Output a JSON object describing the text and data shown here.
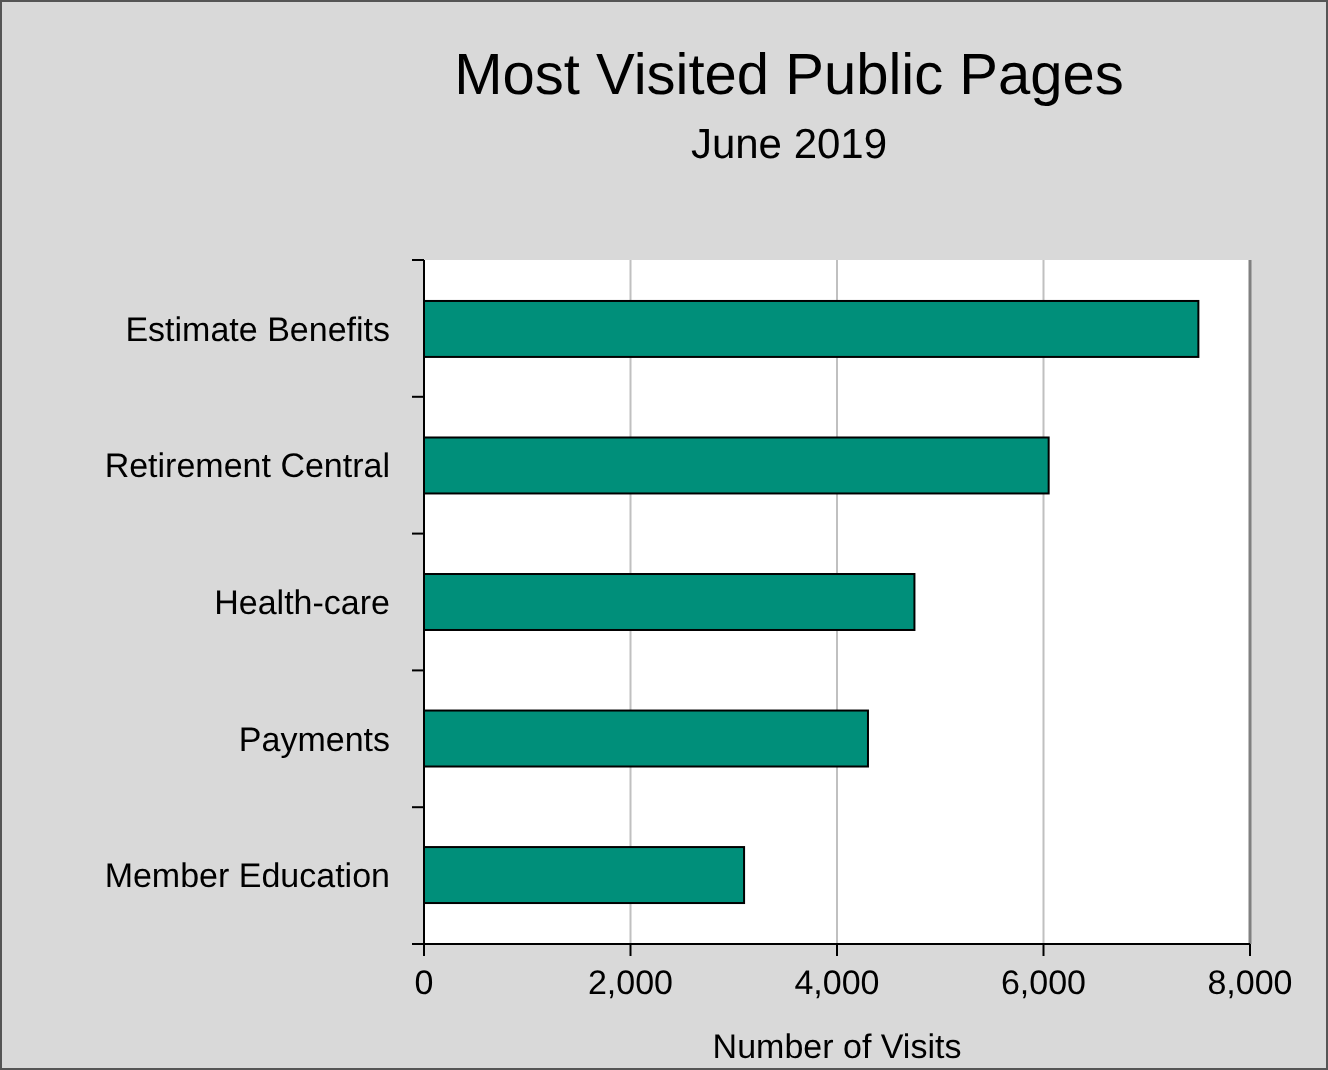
{
  "chart_data": {
    "type": "bar",
    "orientation": "horizontal",
    "title": "Most Visited Public Pages",
    "subtitle": "June 2019",
    "xlabel": "Number of Visits",
    "categories": [
      "Estimate Benefits",
      "Retirement Central",
      "Health-care",
      "Payments",
      "Member Education"
    ],
    "values": [
      7500,
      6050,
      4750,
      4300,
      3100
    ],
    "color": "#008f7a",
    "xlim": [
      0,
      8000
    ],
    "xticks": [
      {
        "value": 0,
        "label": "0"
      },
      {
        "value": 2000,
        "label": "2,000"
      },
      {
        "value": 4000,
        "label": "4,000"
      },
      {
        "value": 6000,
        "label": "6,000"
      },
      {
        "value": 8000,
        "label": "8,000"
      }
    ],
    "grid": "x"
  }
}
